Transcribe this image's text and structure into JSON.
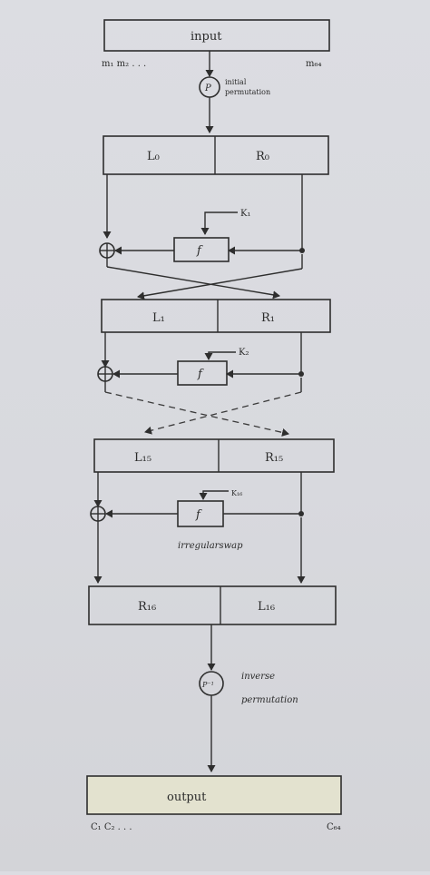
{
  "diagram": {
    "input": {
      "label": "input",
      "start_label": "m₁ m₂ . . .",
      "end_label": "m₆₄"
    },
    "initial_permutation": {
      "symbol": "P",
      "label_line1": "initial",
      "label_line2": "permutation"
    },
    "rounds": [
      {
        "left": "L₀",
        "right": "R₀",
        "f": "f",
        "key": "K₁"
      },
      {
        "left": "L₁",
        "right": "R₁",
        "f": "f",
        "key": "K₂"
      },
      {
        "left": "L₁₅",
        "right": "R₁₅",
        "f": "f",
        "key": "K₁₆"
      }
    ],
    "irregular_swap": "irregularswap",
    "final_block": {
      "left": "R₁₆",
      "right": "L₁₆"
    },
    "inverse_permutation": {
      "symbol": "P⁻¹",
      "label_line1": "inverse",
      "label_line2": "permutation"
    },
    "output": {
      "label": "output",
      "start_label": "C₁ C₂ . . .",
      "end_label": "C₆₄"
    }
  }
}
